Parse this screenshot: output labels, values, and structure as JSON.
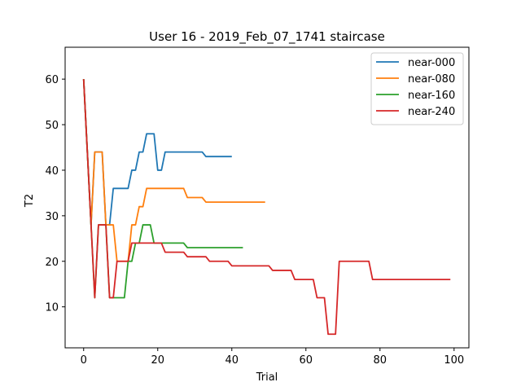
{
  "chart_data": {
    "type": "line",
    "title": "User 16 - 2019_Feb_07_1741 staircase",
    "xlabel": "Trial",
    "ylabel": "T2",
    "xlim": [
      -5,
      104
    ],
    "ylim": [
      1,
      67
    ],
    "xticks": [
      0,
      20,
      40,
      60,
      80,
      100
    ],
    "yticks": [
      10,
      20,
      30,
      40,
      50,
      60
    ],
    "grid": false,
    "legend_position": "top-right",
    "series": [
      {
        "name": "near-000",
        "color": "#1f77b4",
        "x": [
          0,
          1,
          2,
          3,
          4,
          5,
          6,
          7,
          8,
          9,
          10,
          11,
          12,
          13,
          14,
          15,
          16,
          17,
          18,
          19,
          20,
          21,
          22,
          23,
          24,
          25,
          26,
          27,
          28,
          29,
          30,
          31,
          32,
          33,
          34,
          35,
          36,
          37,
          38,
          39,
          40
        ],
        "y": [
          60,
          44,
          28,
          44,
          44,
          44,
          28,
          28,
          36,
          36,
          36,
          36,
          36,
          40,
          40,
          44,
          44,
          48,
          48,
          48,
          40,
          40,
          44,
          44,
          44,
          44,
          44,
          44,
          44,
          44,
          44,
          44,
          44,
          43,
          43,
          43,
          43,
          43,
          43,
          43,
          43
        ]
      },
      {
        "name": "near-080",
        "color": "#ff7f0e",
        "x": [
          0,
          1,
          2,
          3,
          4,
          5,
          6,
          7,
          8,
          9,
          10,
          11,
          12,
          13,
          14,
          15,
          16,
          17,
          18,
          19,
          20,
          21,
          22,
          23,
          24,
          25,
          26,
          27,
          28,
          29,
          30,
          31,
          32,
          33,
          34,
          35,
          36,
          37,
          38,
          39,
          40,
          41,
          42,
          43,
          44,
          45,
          46,
          47,
          48,
          49
        ],
        "y": [
          60,
          44,
          28,
          44,
          44,
          44,
          28,
          28,
          28,
          20,
          20,
          20,
          20,
          28,
          28,
          32,
          32,
          36,
          36,
          36,
          36,
          36,
          36,
          36,
          36,
          36,
          36,
          36,
          34,
          34,
          34,
          34,
          34,
          33,
          33,
          33,
          33,
          33,
          33,
          33,
          33,
          33,
          33,
          33,
          33,
          33,
          33,
          33,
          33,
          33
        ]
      },
      {
        "name": "near-160",
        "color": "#2ca02c",
        "x": [
          0,
          1,
          2,
          3,
          4,
          5,
          6,
          7,
          8,
          9,
          10,
          11,
          12,
          13,
          14,
          15,
          16,
          17,
          18,
          19,
          20,
          21,
          22,
          23,
          24,
          25,
          26,
          27,
          28,
          29,
          30,
          31,
          32,
          33,
          34,
          35,
          36,
          37,
          38,
          39,
          40,
          41,
          42,
          43
        ],
        "y": [
          60,
          44,
          28,
          12,
          28,
          28,
          28,
          12,
          12,
          12,
          12,
          12,
          20,
          20,
          24,
          24,
          28,
          28,
          28,
          24,
          24,
          24,
          24,
          24,
          24,
          24,
          24,
          24,
          23,
          23,
          23,
          23,
          23,
          23,
          23,
          23,
          23,
          23,
          23,
          23,
          23,
          23,
          23,
          23
        ]
      },
      {
        "name": "near-240",
        "color": "#d62728",
        "x": [
          0,
          1,
          2,
          3,
          4,
          5,
          6,
          7,
          8,
          9,
          10,
          11,
          12,
          13,
          14,
          15,
          16,
          17,
          18,
          19,
          20,
          21,
          22,
          23,
          24,
          25,
          26,
          27,
          28,
          29,
          30,
          31,
          32,
          33,
          34,
          35,
          36,
          37,
          38,
          39,
          40,
          41,
          42,
          43,
          44,
          45,
          46,
          47,
          48,
          49,
          50,
          51,
          52,
          53,
          54,
          55,
          56,
          57,
          58,
          59,
          60,
          61,
          62,
          63,
          64,
          65,
          66,
          67,
          68,
          69,
          70,
          71,
          72,
          73,
          74,
          75,
          76,
          77,
          78,
          79,
          80,
          81,
          82,
          83,
          84,
          85,
          86,
          87,
          88,
          89,
          90,
          91,
          92,
          93,
          94,
          95,
          96,
          97,
          98,
          99
        ],
        "y": [
          60,
          44,
          28,
          12,
          28,
          28,
          28,
          12,
          12,
          20,
          20,
          20,
          20,
          24,
          24,
          24,
          24,
          24,
          24,
          24,
          24,
          24,
          22,
          22,
          22,
          22,
          22,
          22,
          21,
          21,
          21,
          21,
          21,
          21,
          20,
          20,
          20,
          20,
          20,
          20,
          19,
          19,
          19,
          19,
          19,
          19,
          19,
          19,
          19,
          19,
          19,
          18,
          18,
          18,
          18,
          18,
          18,
          16,
          16,
          16,
          16,
          16,
          16,
          12,
          12,
          12,
          4,
          4,
          4,
          20,
          20,
          20,
          20,
          20,
          20,
          20,
          20,
          20,
          16,
          16,
          16,
          16,
          16,
          16,
          16,
          16,
          16,
          16,
          16,
          16,
          16,
          16,
          16,
          16,
          16,
          16,
          16,
          16,
          16,
          16
        ]
      }
    ]
  }
}
